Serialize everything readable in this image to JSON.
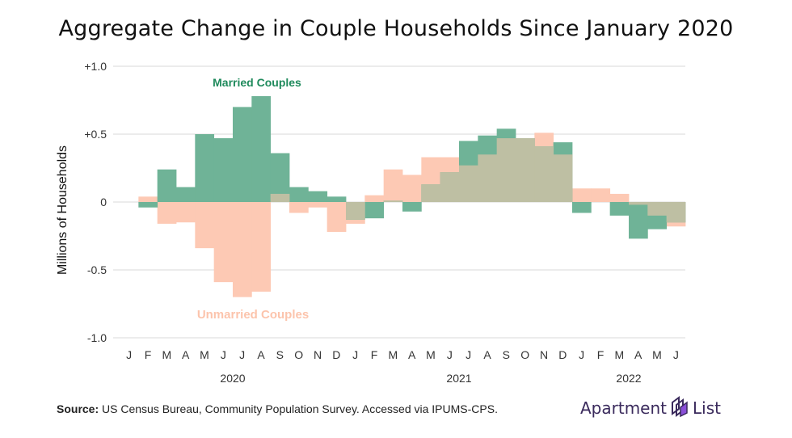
{
  "title": "Aggregate Change in Couple Households Since January 2020",
  "source": {
    "prefix": "Source:",
    "text": " US Census Bureau, Community Population Survey. Accessed via IPUMS-CPS."
  },
  "brand": {
    "word1": "Apartment",
    "word2": "List",
    "icon": "apartment-list-logo-icon"
  },
  "colors": {
    "married": "#6fb397",
    "unmarried": "#fdc9b4",
    "overlap": "#bebfa3",
    "married_label": "#1f8a5c",
    "unmarried_label": "#fcc4ac"
  },
  "chart_data": {
    "type": "bar",
    "ylabel": "Millions of Households",
    "ylim": [
      -1.0,
      1.0
    ],
    "yticks": [
      {
        "value": 1.0,
        "label": "+1.0"
      },
      {
        "value": 0.5,
        "label": "+0.5"
      },
      {
        "value": 0,
        "label": "0"
      },
      {
        "value": -0.5,
        "label": "-0.5"
      },
      {
        "value": -1.0,
        "label": "-1.0"
      }
    ],
    "grid": true,
    "categories": [
      "J",
      "F",
      "M",
      "A",
      "M",
      "J",
      "J",
      "A",
      "S",
      "O",
      "N",
      "D",
      "J",
      "F",
      "M",
      "A",
      "M",
      "J",
      "J",
      "A",
      "S",
      "O",
      "N",
      "D",
      "J",
      "F",
      "M",
      "A",
      "M",
      "J"
    ],
    "years": [
      {
        "label": "2020",
        "start_index": 0,
        "end_index": 11
      },
      {
        "label": "2021",
        "start_index": 12,
        "end_index": 23
      },
      {
        "label": "2022",
        "start_index": 24,
        "end_index": 29
      }
    ],
    "series": [
      {
        "name": "Married Couples",
        "values": [
          0,
          -0.04,
          0.24,
          0.11,
          0.5,
          0.47,
          0.7,
          0.78,
          0.36,
          0.11,
          0.08,
          0.04,
          -0.13,
          -0.12,
          0.01,
          -0.07,
          0.13,
          0.22,
          0.45,
          0.49,
          0.54,
          0.47,
          0.41,
          0.44,
          -0.08,
          0,
          -0.1,
          -0.27,
          -0.2,
          -0.15
        ]
      },
      {
        "name": "Unmarried Couples",
        "values": [
          0,
          0.04,
          -0.16,
          -0.15,
          -0.34,
          -0.59,
          -0.7,
          -0.66,
          0.06,
          -0.08,
          -0.04,
          -0.22,
          -0.16,
          0.05,
          0.24,
          0.2,
          0.33,
          0.33,
          0.27,
          0.35,
          0.47,
          0.47,
          0.51,
          0.35,
          0.1,
          0.1,
          0.06,
          -0.02,
          -0.1,
          -0.18
        ]
      }
    ],
    "annotations": [
      {
        "text": "Married Couples",
        "series": "Married Couples"
      },
      {
        "text": "Unmarried Couples",
        "series": "Unmarried Couples"
      }
    ]
  }
}
